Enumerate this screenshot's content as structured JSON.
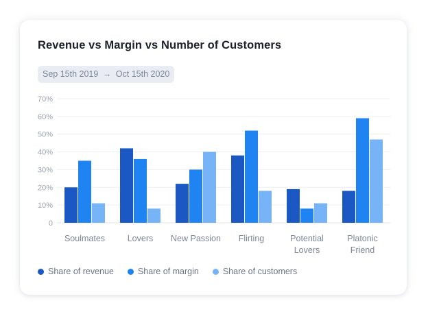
{
  "chart_data": {
    "type": "bar",
    "title": "Revenue vs Margin vs Number of Customers",
    "date_range": {
      "start": "Sep 15th 2019",
      "arrow": "→",
      "end": "Oct 15th 2020"
    },
    "categories": [
      [
        "Soulmates"
      ],
      [
        "Lovers"
      ],
      [
        "New Passion"
      ],
      [
        "Flirting"
      ],
      [
        "Potential",
        "Lovers"
      ],
      [
        "Platonic",
        "Friend"
      ]
    ],
    "series": [
      {
        "name": "Share of revenue",
        "color": "#1c58c4",
        "values": [
          20,
          42,
          22,
          38,
          19,
          18
        ]
      },
      {
        "name": "Share of margin",
        "color": "#1f84f2",
        "values": [
          35,
          36,
          30,
          52,
          8,
          59
        ]
      },
      {
        "name": "Share of customers",
        "color": "#76b4f7",
        "values": [
          11,
          8,
          40,
          18,
          11,
          47
        ]
      }
    ],
    "yticks": [
      "0",
      "10%",
      "20%",
      "30%",
      "40%",
      "50%",
      "60%",
      "70%"
    ],
    "ylim": [
      0,
      70
    ],
    "grid": true,
    "legend_position": "bottom-left"
  }
}
